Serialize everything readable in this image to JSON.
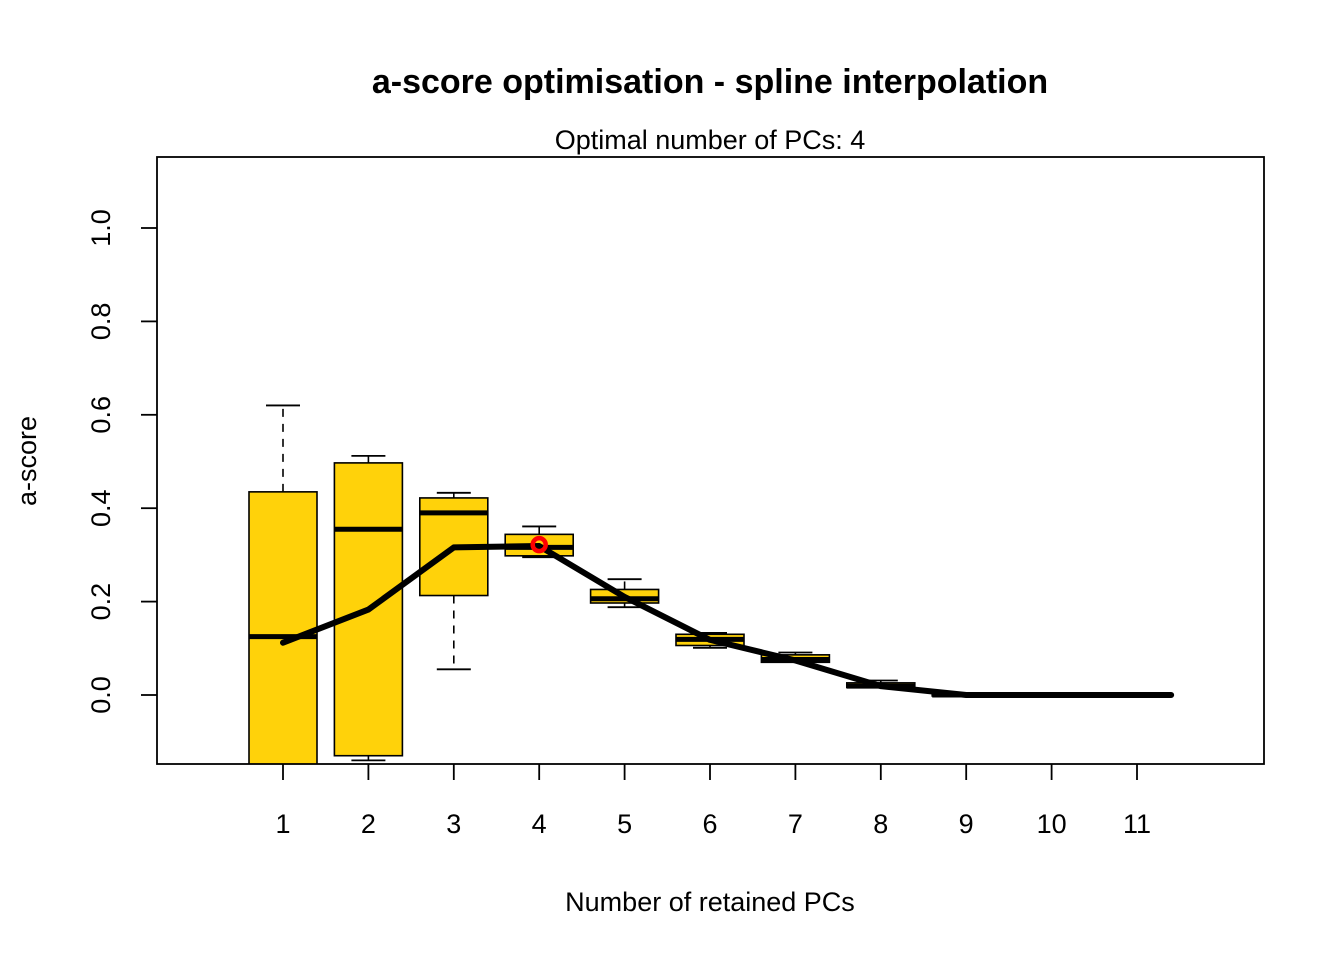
{
  "chart_data": {
    "type": "boxplot",
    "title": "a-score optimisation - spline interpolation",
    "subtitle": "Optimal number of PCs: 4",
    "xlabel": "Number of retained PCs",
    "ylabel": "a-score",
    "categories": [
      "1",
      "2",
      "3",
      "4",
      "5",
      "6",
      "7",
      "8",
      "9",
      "10",
      "11"
    ],
    "ylim": [
      -0.15,
      1.15
    ],
    "y_ticks": [
      0.0,
      0.2,
      0.4,
      0.6,
      0.8,
      1.0
    ],
    "y_tick_labels": [
      "0.0",
      "0.2",
      "0.4",
      "0.6",
      "0.8",
      "1.0"
    ],
    "boxes": [
      {
        "x": 1,
        "whisker_low": -0.16,
        "q1": -0.16,
        "median": 0.125,
        "q3": 0.435,
        "whisker_high": 0.62
      },
      {
        "x": 2,
        "whisker_low": -0.14,
        "q1": -0.13,
        "median": 0.355,
        "q3": 0.497,
        "whisker_high": 0.512
      },
      {
        "x": 3,
        "whisker_low": 0.055,
        "q1": 0.213,
        "median": 0.39,
        "q3": 0.422,
        "whisker_high": 0.433
      },
      {
        "x": 4,
        "whisker_low": 0.295,
        "q1": 0.298,
        "median": 0.316,
        "q3": 0.344,
        "whisker_high": 0.361
      },
      {
        "x": 5,
        "whisker_low": 0.188,
        "q1": 0.197,
        "median": 0.206,
        "q3": 0.226,
        "whisker_high": 0.248
      },
      {
        "x": 6,
        "whisker_low": 0.101,
        "q1": 0.106,
        "median": 0.119,
        "q3": 0.13,
        "whisker_high": 0.133
      },
      {
        "x": 7,
        "whisker_low": 0.068,
        "q1": 0.07,
        "median": 0.076,
        "q3": 0.086,
        "whisker_high": 0.091
      },
      {
        "x": 8,
        "whisker_low": 0.014,
        "q1": 0.016,
        "median": 0.019,
        "q3": 0.026,
        "whisker_high": 0.031
      },
      {
        "x": 9,
        "whisker_low": -0.002,
        "q1": -0.002,
        "median": 0.0,
        "q3": 0.002,
        "whisker_high": 0.002
      },
      {
        "x": 10,
        "whisker_low": 0.0,
        "q1": 0.0,
        "median": 0.0,
        "q3": 0.0,
        "whisker_high": 0.0
      },
      {
        "x": 11,
        "whisker_low": 0.0,
        "q1": 0.0,
        "median": 0.0,
        "q3": 0.0,
        "whisker_high": 0.0
      }
    ],
    "spline": {
      "x": [
        1,
        2,
        3,
        4,
        5,
        6,
        7,
        8,
        9,
        10,
        11.4
      ],
      "y": [
        0.112,
        0.183,
        0.316,
        0.319,
        0.21,
        0.118,
        0.074,
        0.019,
        0.0,
        0.0,
        0.0
      ]
    },
    "optimum": {
      "x": 4,
      "y": 0.322
    },
    "colors": {
      "box_fill": "#FFD20A",
      "line": "#000000",
      "optimum_marker": "#FF0000"
    },
    "grid": false,
    "legend": "none"
  }
}
